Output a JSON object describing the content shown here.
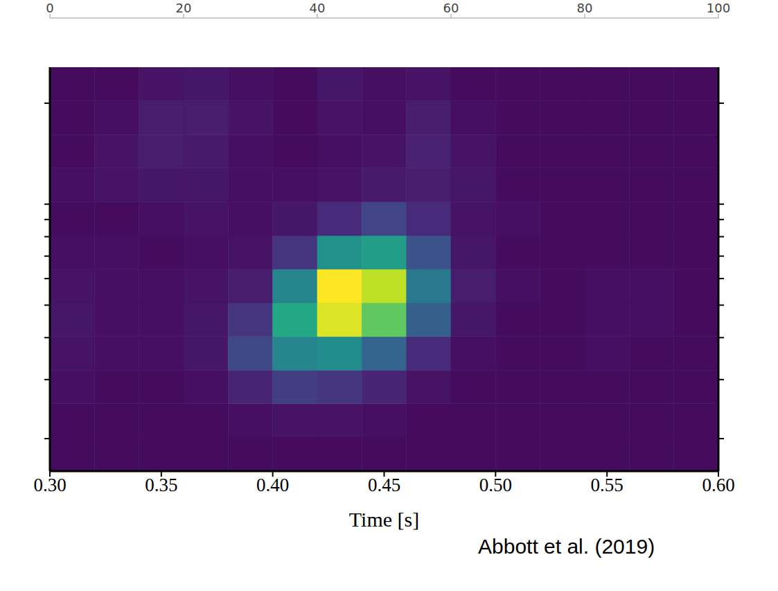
{
  "chart_data": {
    "type": "heatmap",
    "x_label": "Time [s]",
    "annotations": [
      "Abbott et al. (2019)"
    ],
    "xlim": [
      0.3,
      0.6
    ],
    "xticks": [
      {
        "value": 0.3,
        "label": "0.30"
      },
      {
        "value": 0.35,
        "label": "0.35"
      },
      {
        "value": 0.4,
        "label": "0.40"
      },
      {
        "value": 0.45,
        "label": "0.45"
      },
      {
        "value": 0.5,
        "label": "0.50"
      },
      {
        "value": 0.55,
        "label": "0.55"
      },
      {
        "value": 0.6,
        "label": "0.60"
      }
    ],
    "ylim": [
      16,
      256
    ],
    "yticks": [
      20,
      30,
      40,
      50,
      60,
      70,
      80,
      90,
      100,
      200
    ],
    "log": "y",
    "tick_labels": "x",
    "cells": {
      "x_edges": [
        0.3,
        0.32,
        0.34,
        0.36,
        0.38,
        0.4,
        0.42,
        0.44,
        0.46,
        0.48,
        0.5,
        0.52,
        0.54,
        0.56,
        0.58,
        0.6
      ],
      "y_edges": [
        16,
        20.2,
        25.4,
        32,
        40.3,
        50.8,
        64,
        80.6,
        101.6,
        128,
        161.3,
        203.2,
        256
      ],
      "values": [
        [
          3,
          3,
          3,
          3,
          3,
          3,
          3,
          3,
          3,
          3,
          3,
          3,
          3,
          3,
          3
        ],
        [
          3,
          3,
          3,
          3,
          4,
          5,
          5,
          4,
          3,
          3,
          3,
          3,
          3,
          3,
          3
        ],
        [
          4,
          3,
          3,
          4,
          10,
          18,
          16,
          10,
          5,
          3,
          3,
          3,
          3,
          3,
          3
        ],
        [
          5,
          4,
          4,
          6,
          22,
          45,
          48,
          32,
          12,
          4,
          3,
          3,
          4,
          3,
          3
        ],
        [
          6,
          4,
          4,
          6,
          15,
          60,
          95,
          75,
          30,
          6,
          3,
          3,
          4,
          4,
          3
        ],
        [
          5,
          4,
          4,
          5,
          8,
          45,
          100,
          90,
          40,
          8,
          4,
          3,
          4,
          4,
          3
        ],
        [
          4,
          4,
          3,
          4,
          5,
          15,
          50,
          55,
          25,
          6,
          3,
          3,
          3,
          3,
          3
        ],
        [
          3,
          3,
          4,
          5,
          4,
          6,
          12,
          20,
          12,
          5,
          4,
          3,
          3,
          3,
          3
        ],
        [
          4,
          5,
          6,
          6,
          4,
          4,
          5,
          7,
          8,
          6,
          3,
          3,
          3,
          3,
          3
        ],
        [
          3,
          5,
          8,
          7,
          4,
          3,
          4,
          5,
          9,
          5,
          3,
          3,
          3,
          3,
          3
        ],
        [
          3,
          4,
          8,
          8,
          5,
          3,
          5,
          4,
          8,
          4,
          3,
          3,
          3,
          3,
          3
        ],
        [
          3,
          3,
          5,
          6,
          4,
          3,
          6,
          4,
          5,
          3,
          3,
          3,
          3,
          3,
          3
        ]
      ]
    },
    "colorbar": {
      "range": [
        0,
        100
      ],
      "ticks": [
        0,
        20,
        40,
        60,
        80,
        100
      ]
    }
  }
}
